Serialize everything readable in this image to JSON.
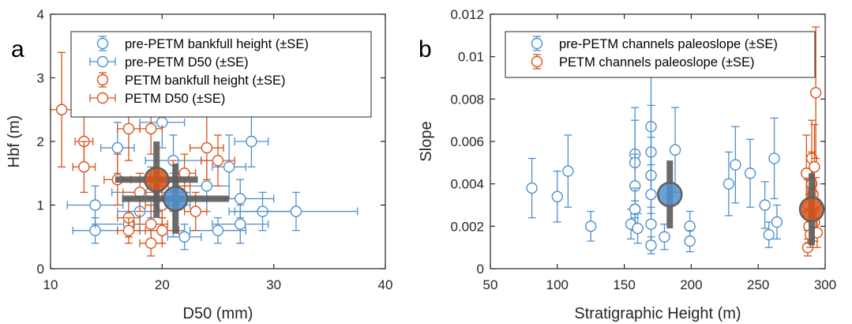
{
  "colors": {
    "pre": "#4F90CC",
    "petm": "#D95319",
    "mean": "#5F5F5F",
    "axis": "#262626"
  },
  "chart_data": [
    {
      "type": "scatter",
      "panel_label": "a",
      "xlabel": "D50 (mm)",
      "ylabel": "Hbf (m)",
      "xlim": [
        10,
        40
      ],
      "ylim": [
        0,
        4
      ],
      "xticks": [
        "10",
        "20",
        "30",
        "40"
      ],
      "yticks": [
        "0",
        "1",
        "2",
        "3",
        "4"
      ],
      "legend": {
        "placement": "top-right",
        "entries": [
          "pre-PETM bankfull height (±SE)",
          "pre-PETM D50 (±SE)",
          "PETM bankfull height (±SE)",
          "PETM D50 (±SE)"
        ]
      },
      "series": [
        {
          "name": "pre-PETM",
          "color": "pre",
          "points": [
            {
              "x": 14,
              "y": 1.0,
              "xe": 2.5,
              "ye": 0.3
            },
            {
              "x": 14,
              "y": 0.6,
              "xe": 2.0,
              "ye": 0.2
            },
            {
              "x": 16,
              "y": 1.9,
              "xe": 1.5,
              "ye": 0.4
            },
            {
              "x": 17,
              "y": 0.7,
              "xe": 3.0,
              "ye": 0.2
            },
            {
              "x": 18,
              "y": 0.9,
              "xe": 2.0,
              "ye": 0.3
            },
            {
              "x": 19,
              "y": 1.2,
              "xe": 3.5,
              "ye": 0.4
            },
            {
              "x": 20,
              "y": 2.3,
              "xe": 2.0,
              "ye": 0.4
            },
            {
              "x": 20,
              "y": 0.6,
              "xe": 2.0,
              "ye": 0.2
            },
            {
              "x": 21,
              "y": 1.0,
              "xe": 1.5,
              "ye": 0.5
            },
            {
              "x": 21,
              "y": 1.7,
              "xe": 2.5,
              "ye": 0.4
            },
            {
              "x": 22,
              "y": 0.5,
              "xe": 1.5,
              "ye": 0.2
            },
            {
              "x": 24,
              "y": 1.3,
              "xe": 2.0,
              "ye": 0.4
            },
            {
              "x": 25,
              "y": 0.6,
              "xe": 2.5,
              "ye": 0.2
            },
            {
              "x": 26,
              "y": 1.6,
              "xe": 1.5,
              "ye": 0.5
            },
            {
              "x": 27,
              "y": 1.1,
              "xe": 3.0,
              "ye": 0.3
            },
            {
              "x": 27,
              "y": 0.7,
              "xe": 2.5,
              "ye": 0.3
            },
            {
              "x": 28,
              "y": 2.0,
              "xe": 1.5,
              "ye": 0.4
            },
            {
              "x": 29,
              "y": 0.9,
              "xe": 3.0,
              "ye": 0.3
            },
            {
              "x": 32,
              "y": 0.9,
              "xe": 5.5,
              "ye": 0.3
            }
          ],
          "mean": {
            "x": 21.2,
            "y": 1.1,
            "xe": 4.8,
            "ye": 0.55
          }
        },
        {
          "name": "PETM",
          "color": "petm",
          "points": [
            {
              "x": 11,
              "y": 2.5,
              "xe": 1.5,
              "ye": 0.9
            },
            {
              "x": 13,
              "y": 2.0,
              "xe": 0.8,
              "ye": 0.4
            },
            {
              "x": 13,
              "y": 1.6,
              "xe": 1.0,
              "ye": 0.4
            },
            {
              "x": 16,
              "y": 1.4,
              "xe": 1.2,
              "ye": 0.4
            },
            {
              "x": 17,
              "y": 2.2,
              "xe": 1.0,
              "ye": 0.5
            },
            {
              "x": 17,
              "y": 0.8,
              "xe": 1.0,
              "ye": 0.3
            },
            {
              "x": 17,
              "y": 0.6,
              "xe": 1.0,
              "ye": 0.2
            },
            {
              "x": 18,
              "y": 1.2,
              "xe": 1.5,
              "ye": 0.3
            },
            {
              "x": 19,
              "y": 2.2,
              "xe": 1.0,
              "ye": 0.4
            },
            {
              "x": 19,
              "y": 0.7,
              "xe": 1.5,
              "ye": 0.3
            },
            {
              "x": 19,
              "y": 0.4,
              "xe": 1.0,
              "ye": 0.2
            },
            {
              "x": 20,
              "y": 1.0,
              "xe": 1.5,
              "ye": 0.4
            },
            {
              "x": 20,
              "y": 0.6,
              "xe": 1.5,
              "ye": 0.2
            },
            {
              "x": 21,
              "y": 1.3,
              "xe": 1.5,
              "ye": 0.4
            },
            {
              "x": 22,
              "y": 1.5,
              "xe": 1.0,
              "ye": 0.3
            },
            {
              "x": 23,
              "y": 0.9,
              "xe": 1.0,
              "ye": 0.3
            },
            {
              "x": 24,
              "y": 1.9,
              "xe": 1.5,
              "ye": 0.5
            },
            {
              "x": 25,
              "y": 1.7,
              "xe": 1.5,
              "ye": 0.4
            }
          ],
          "mean": {
            "x": 19.5,
            "y": 1.4,
            "xe": 3.7,
            "ye": 0.6
          }
        }
      ]
    },
    {
      "type": "scatter",
      "panel_label": "b",
      "xlabel": "Stratigraphic Height (m)",
      "ylabel": "Slope",
      "xlim": [
        50,
        300
      ],
      "ylim": [
        0,
        0.012
      ],
      "xticks": [
        "50",
        "100",
        "150",
        "200",
        "250",
        "300"
      ],
      "yticks": [
        "0",
        "0.002",
        "0.004",
        "0.006",
        "0.008",
        "0.01",
        "0.012"
      ],
      "legend": {
        "placement": "top-left",
        "entries": [
          "pre-PETM channels paleoslope (±SE)",
          "PETM channels paleoslope (±SE)"
        ]
      },
      "series": [
        {
          "name": "pre-PETM",
          "color": "pre",
          "points": [
            {
              "x": 81,
              "y": 0.0038,
              "ye": 0.0014
            },
            {
              "x": 100,
              "y": 0.0034,
              "ye": 0.0012
            },
            {
              "x": 108,
              "y": 0.0046,
              "ye": 0.0017
            },
            {
              "x": 125,
              "y": 0.002,
              "ye": 0.0007
            },
            {
              "x": 155,
              "y": 0.0021,
              "ye": 0.0007
            },
            {
              "x": 158,
              "y": 0.0054,
              "ye": 0.0022
            },
            {
              "x": 158,
              "y": 0.005,
              "ye": 0.002
            },
            {
              "x": 158,
              "y": 0.0039,
              "ye": 0.0015
            },
            {
              "x": 158,
              "y": 0.0028,
              "ye": 0.001
            },
            {
              "x": 160,
              "y": 0.0019,
              "ye": 0.0007
            },
            {
              "x": 170,
              "y": 0.0067,
              "ye": 0.0025
            },
            {
              "x": 170,
              "y": 0.0055,
              "ye": 0.0022
            },
            {
              "x": 170,
              "y": 0.0044,
              "ye": 0.0018
            },
            {
              "x": 170,
              "y": 0.0035,
              "ye": 0.0014
            },
            {
              "x": 170,
              "y": 0.0021,
              "ye": 0.0008
            },
            {
              "x": 170,
              "y": 0.0011,
              "ye": 0.0004
            },
            {
              "x": 180,
              "y": 0.0015,
              "ye": 0.0006
            },
            {
              "x": 188,
              "y": 0.0056,
              "ye": 0.002
            },
            {
              "x": 199,
              "y": 0.002,
              "ye": 0.0007
            },
            {
              "x": 199,
              "y": 0.0013,
              "ye": 0.0005
            },
            {
              "x": 228,
              "y": 0.004,
              "ye": 0.0015
            },
            {
              "x": 233,
              "y": 0.0049,
              "ye": 0.0018
            },
            {
              "x": 244,
              "y": 0.0045,
              "ye": 0.0016
            },
            {
              "x": 255,
              "y": 0.003,
              "ye": 0.0011
            },
            {
              "x": 258,
              "y": 0.0016,
              "ye": 0.0006
            },
            {
              "x": 262,
              "y": 0.0052,
              "ye": 0.0019
            },
            {
              "x": 264,
              "y": 0.0022,
              "ye": 0.0008
            }
          ],
          "mean": {
            "x": 184,
            "y": 0.0035,
            "ye": 0.0016
          }
        },
        {
          "name": "PETM",
          "color": "petm",
          "points": [
            {
              "x": 286,
              "y": 0.0045,
              "ye": 0.0018
            },
            {
              "x": 287,
              "y": 0.003,
              "ye": 0.0012
            },
            {
              "x": 287,
              "y": 0.001,
              "ye": 0.0004
            },
            {
              "x": 288,
              "y": 0.0025,
              "ye": 0.001
            },
            {
              "x": 288,
              "y": 0.002,
              "ye": 0.0008
            },
            {
              "x": 289,
              "y": 0.0016,
              "ye": 0.0006
            },
            {
              "x": 290,
              "y": 0.0052,
              "ye": 0.0018
            },
            {
              "x": 290,
              "y": 0.004,
              "ye": 0.0015
            },
            {
              "x": 291,
              "y": 0.0035,
              "ye": 0.0013
            },
            {
              "x": 291,
              "y": 0.0028,
              "ye": 0.0011
            },
            {
              "x": 292,
              "y": 0.0048,
              "ye": 0.002
            },
            {
              "x": 292,
              "y": 0.0022,
              "ye": 0.0009
            },
            {
              "x": 293,
              "y": 0.0083,
              "ye": 0.0031
            },
            {
              "x": 293,
              "y": 0.0031,
              "ye": 0.0012
            },
            {
              "x": 294,
              "y": 0.0017,
              "ye": 0.0007
            }
          ],
          "mean": {
            "x": 290,
            "y": 0.0028,
            "ye": 0.0017
          }
        }
      ]
    }
  ]
}
